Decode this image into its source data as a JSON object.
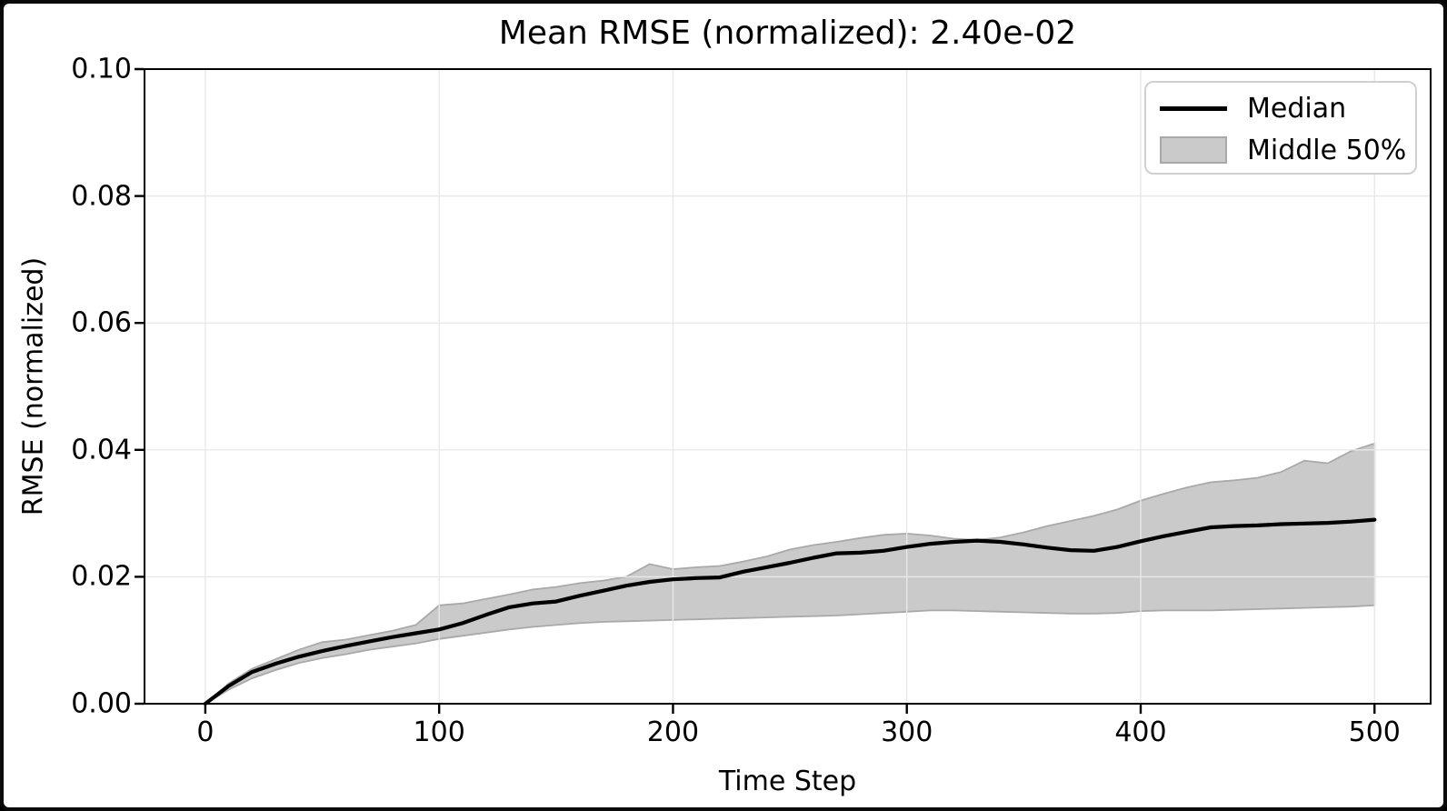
{
  "figure": {
    "title": "Mean RMSE (normalized): 2.40e-02",
    "xlabel": "Time Step",
    "ylabel": "RMSE (normalized)",
    "mean_rmse_normalized": "2.40e-02"
  },
  "legend": {
    "items": [
      {
        "label": "Median",
        "swatch": "line",
        "color": "#000000"
      },
      {
        "label": "Middle 50%",
        "swatch": "patch",
        "fill": "#cacaca",
        "edge": "#a9a9a9"
      }
    ]
  },
  "chart_data": {
    "type": "line",
    "title": "Mean RMSE (normalized): 2.40e-02",
    "xlabel": "Time Step",
    "ylabel": "RMSE (normalized)",
    "xlim": [
      -26,
      524
    ],
    "ylim": [
      0,
      0.1
    ],
    "x_ticks": [
      0,
      100,
      200,
      300,
      400,
      500
    ],
    "x_tick_labels": [
      "0",
      "100",
      "200",
      "300",
      "400",
      "500"
    ],
    "y_ticks": [
      0,
      0.02,
      0.04,
      0.06,
      0.08,
      0.1
    ],
    "y_tick_labels": [
      "0.00",
      "0.02",
      "0.04",
      "0.06",
      "0.08",
      "0.10"
    ],
    "grid": true,
    "legend_position": "upper right",
    "x": [
      0,
      10,
      20,
      30,
      40,
      50,
      60,
      70,
      80,
      90,
      100,
      110,
      120,
      130,
      140,
      150,
      160,
      170,
      180,
      190,
      200,
      210,
      220,
      230,
      240,
      250,
      260,
      270,
      280,
      290,
      300,
      310,
      320,
      330,
      340,
      350,
      360,
      370,
      380,
      390,
      400,
      410,
      420,
      430,
      440,
      450,
      460,
      470,
      480,
      490,
      500
    ],
    "series": [
      {
        "name": "Median",
        "type": "line",
        "color": "#000000",
        "values": [
          0.0,
          0.0028,
          0.005,
          0.0063,
          0.0074,
          0.0083,
          0.0091,
          0.0098,
          0.0105,
          0.0111,
          0.0117,
          0.0127,
          0.014,
          0.0152,
          0.0158,
          0.0161,
          0.017,
          0.0178,
          0.0186,
          0.0192,
          0.0196,
          0.0198,
          0.0199,
          0.0208,
          0.0215,
          0.0222,
          0.023,
          0.0237,
          0.0238,
          0.0241,
          0.0247,
          0.0252,
          0.0255,
          0.0257,
          0.0255,
          0.0251,
          0.0246,
          0.0242,
          0.0241,
          0.0247,
          0.0256,
          0.0264,
          0.0271,
          0.0278,
          0.028,
          0.0281,
          0.0283,
          0.0284,
          0.0285,
          0.0287,
          0.029
        ]
      },
      {
        "name": "Middle 50% upper (75th percentile)",
        "type": "band-upper",
        "values": [
          0.0,
          0.0032,
          0.0055,
          0.007,
          0.0085,
          0.0097,
          0.0101,
          0.0108,
          0.0115,
          0.0124,
          0.0155,
          0.0158,
          0.0165,
          0.0172,
          0.018,
          0.0184,
          0.019,
          0.0194,
          0.02,
          0.022,
          0.0212,
          0.0215,
          0.0217,
          0.0224,
          0.0232,
          0.0243,
          0.025,
          0.0255,
          0.0261,
          0.0266,
          0.0268,
          0.0265,
          0.026,
          0.0258,
          0.0262,
          0.027,
          0.028,
          0.0288,
          0.0296,
          0.0306,
          0.032,
          0.0331,
          0.0341,
          0.0349,
          0.0352,
          0.0356,
          0.0365,
          0.0383,
          0.0379,
          0.0398,
          0.041
        ]
      },
      {
        "name": "Middle 50% lower (25th percentile)",
        "type": "band-lower",
        "values": [
          0.0,
          0.0022,
          0.004,
          0.0053,
          0.0064,
          0.0072,
          0.0078,
          0.0085,
          0.009,
          0.0095,
          0.0102,
          0.0107,
          0.0112,
          0.0117,
          0.0121,
          0.0124,
          0.0127,
          0.0129,
          0.013,
          0.0131,
          0.0132,
          0.0133,
          0.0134,
          0.0135,
          0.0136,
          0.0137,
          0.0138,
          0.0139,
          0.0141,
          0.0143,
          0.0145,
          0.0147,
          0.0147,
          0.0146,
          0.0145,
          0.0144,
          0.0143,
          0.0142,
          0.0142,
          0.0143,
          0.0146,
          0.0147,
          0.0147,
          0.0147,
          0.0148,
          0.0149,
          0.015,
          0.0151,
          0.0152,
          0.0153,
          0.0155
        ]
      }
    ],
    "style": {
      "band_fill": "#cacaca",
      "band_edge": "#a9a9a9",
      "grid_color": "#e8e8e8",
      "axis_color": "#000000",
      "background": "#ffffff"
    }
  }
}
